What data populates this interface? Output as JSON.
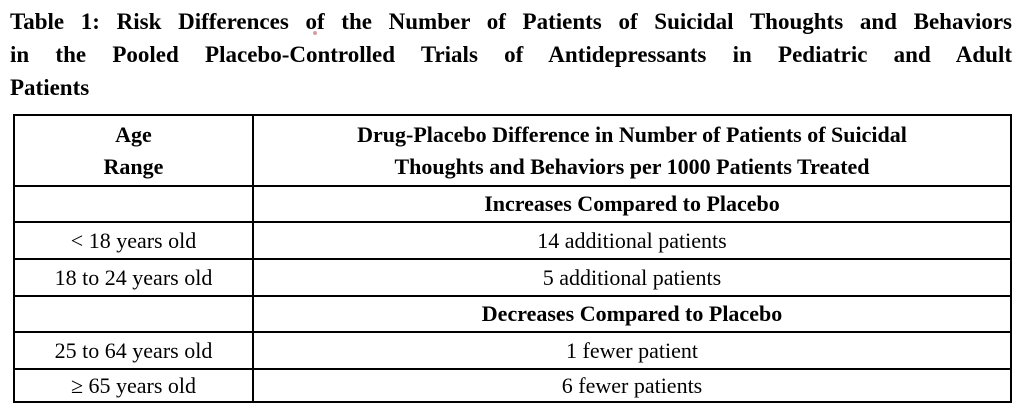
{
  "colors": {
    "text": "#000000",
    "border": "#000000",
    "background": "#ffffff",
    "artifact_dot": "#b05050"
  },
  "title": {
    "line1": "Table 1: Risk Differences of the Number of Patients of Suicidal Thoughts and Behaviors",
    "line2": "in the Pooled Placebo-Controlled Trials of Antidepressants in Pediatric and Adult",
    "line3": "Patients"
  },
  "table": {
    "header": {
      "age_column": "Age\nRange",
      "difference_column": "Drug-Placebo Difference in Number of Patients of Suicidal\nThoughts and Behaviors per 1000 Patients Treated"
    },
    "sections": [
      {
        "heading": "Increases Compared to Placebo",
        "rows": [
          {
            "age_range": "< 18 years old",
            "difference": "14 additional patients"
          },
          {
            "age_range": "18 to 24 years old",
            "difference": "5 additional patients"
          }
        ]
      },
      {
        "heading": "Decreases Compared to Placebo",
        "rows": [
          {
            "age_range": "25 to 64 years old",
            "difference": "1 fewer patient"
          },
          {
            "age_range": "≥ 65 years old",
            "difference": "6 fewer patients"
          }
        ]
      }
    ]
  }
}
